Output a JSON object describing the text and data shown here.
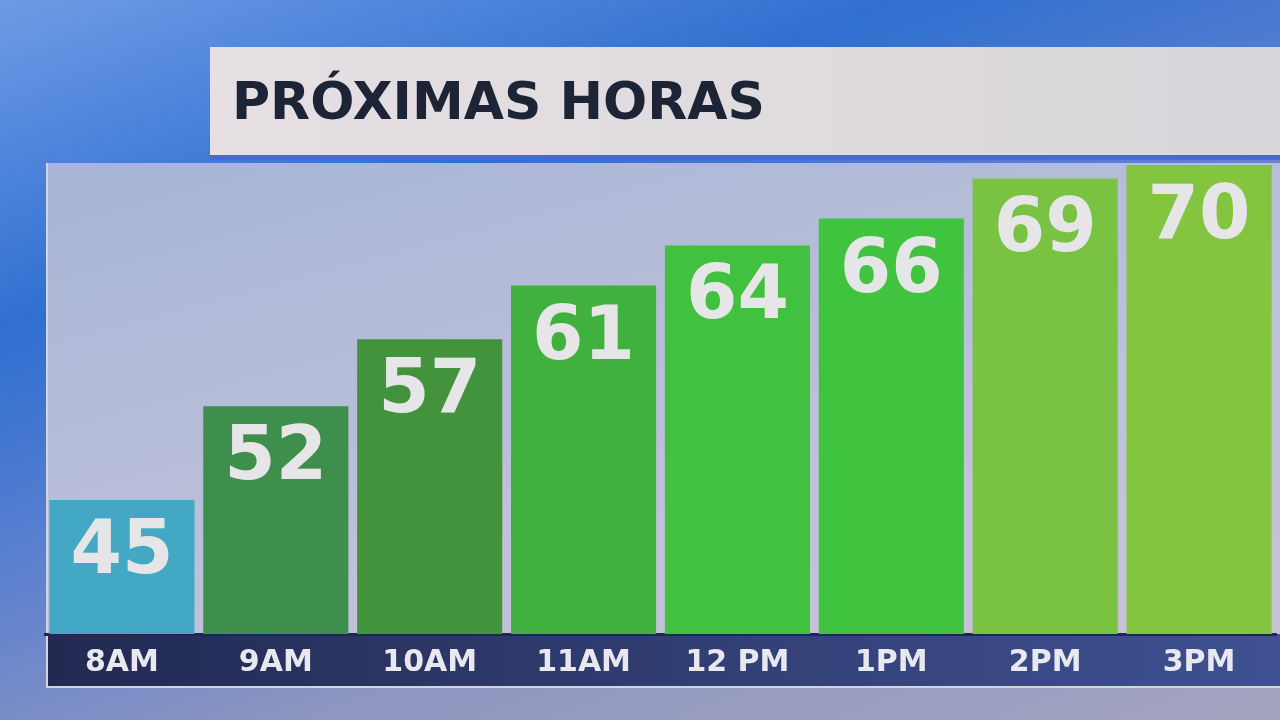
{
  "chart_data": {
    "type": "bar",
    "title": "PRÓXIMAS HORAS",
    "categories": [
      "8AM",
      "9AM",
      "10AM",
      "11AM",
      "12 PM",
      "1PM",
      "2PM",
      "3PM"
    ],
    "values": [
      45,
      52,
      57,
      61,
      64,
      66,
      69,
      70
    ],
    "colors": [
      "#42a8c4",
      "#3e8f4b",
      "#42933c",
      "#40b03e",
      "#42c040",
      "#40c43f",
      "#7ac342",
      "#83c53e"
    ],
    "ylim": [
      35,
      70
    ],
    "data_labels": true,
    "tick_labels": "x"
  }
}
